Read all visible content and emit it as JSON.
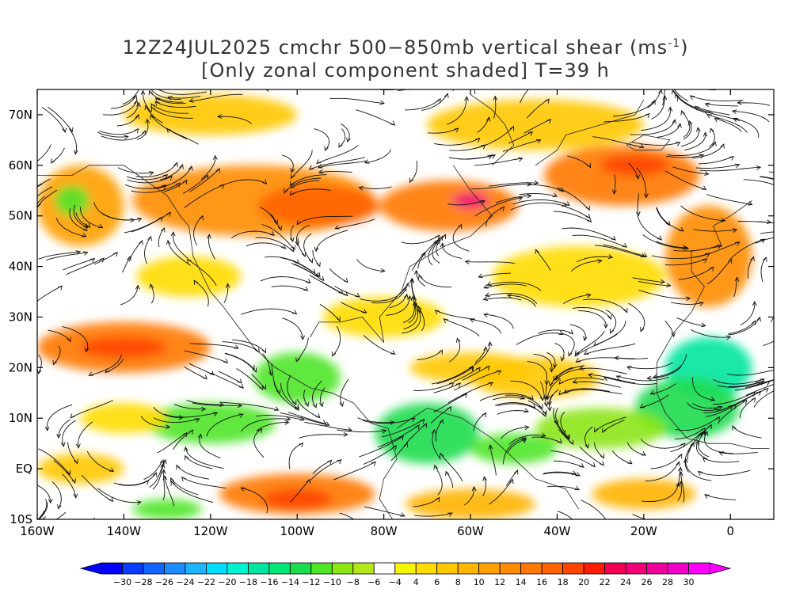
{
  "title": {
    "line1_prefix": "12Z24JUL2025 cmchr 500−850mb vertical shear (ms",
    "line1_sup": "-1",
    "line1_suffix": ")",
    "line2": "[Only zonal component shaded] T=39 h"
  },
  "latitude_labels": [
    "70N",
    "60N",
    "50N",
    "40N",
    "30N",
    "20N",
    "10N",
    "EQ",
    "10S"
  ],
  "latitude_values": [
    70,
    60,
    50,
    40,
    30,
    20,
    10,
    0,
    -10
  ],
  "longitude_labels": [
    "160W",
    "140W",
    "120W",
    "100W",
    "80W",
    "60W",
    "40W",
    "20W",
    "0"
  ],
  "longitude_values": [
    -160,
    -140,
    -120,
    -100,
    -80,
    -60,
    -40,
    -20,
    0
  ],
  "map_extent": {
    "lon_min": -160,
    "lon_max": 10,
    "lat_min": -10,
    "lat_max": 75
  },
  "colorbar": {
    "labels": [
      "−30",
      "−28",
      "−26",
      "−24",
      "−22",
      "−20",
      "−18",
      "−16",
      "−14",
      "−12",
      "−10",
      "−8",
      "−6",
      "−4",
      "4",
      "6",
      "8",
      "10",
      "12",
      "14",
      "16",
      "18",
      "20",
      "22",
      "24",
      "26",
      "28",
      "30"
    ],
    "colors": [
      "#0000ff",
      "#0a3cff",
      "#1464ff",
      "#1e8cff",
      "#1eb4ff",
      "#00dcff",
      "#00f0d2",
      "#00e6a0",
      "#00e678",
      "#1edc50",
      "#50e628",
      "#8ce614",
      "#b4e61e",
      "#ffffff",
      "#f5f500",
      "#ffdc00",
      "#ffc800",
      "#ffb400",
      "#ffa000",
      "#ff8c00",
      "#ff7800",
      "#ff6400",
      "#ff4600",
      "#ff1e00",
      "#f00050",
      "#f00078",
      "#f0009b",
      "#f000c8",
      "#ff00ff"
    ],
    "low_arrow_color": "#0000ff",
    "high_arrow_color": "#ff00ff"
  },
  "shading_regions": [
    {
      "lon": -150,
      "lat": 52,
      "rx": 10,
      "ry": 8,
      "color": "#ffa000"
    },
    {
      "lon": -152,
      "lat": 53,
      "rx": 4,
      "ry": 3,
      "color": "#50e628"
    },
    {
      "lon": -110,
      "lat": 53,
      "rx": 28,
      "ry": 7,
      "color": "#ff8c00"
    },
    {
      "lon": -95,
      "lat": 52,
      "rx": 14,
      "ry": 4,
      "color": "#ff6400"
    },
    {
      "lon": -65,
      "lat": 52,
      "rx": 16,
      "ry": 5,
      "color": "#ff7800"
    },
    {
      "lon": -60,
      "lat": 53,
      "rx": 4,
      "ry": 1.5,
      "color": "#f00078"
    },
    {
      "lon": -25,
      "lat": 58,
      "rx": 18,
      "ry": 6,
      "color": "#ff7800"
    },
    {
      "lon": -22,
      "lat": 60,
      "rx": 8,
      "ry": 2,
      "color": "#ff4600"
    },
    {
      "lon": -5,
      "lat": 42,
      "rx": 10,
      "ry": 10,
      "color": "#ff8c00"
    },
    {
      "lon": -140,
      "lat": 24,
      "rx": 20,
      "ry": 5,
      "color": "#ff7800"
    },
    {
      "lon": -140,
      "lat": 24,
      "rx": 10,
      "ry": 2,
      "color": "#ff4600"
    },
    {
      "lon": -100,
      "lat": -5,
      "rx": 18,
      "ry": 4,
      "color": "#ff7800"
    },
    {
      "lon": -100,
      "lat": -6,
      "rx": 8,
      "ry": 2,
      "color": "#ff4600"
    },
    {
      "lon": -120,
      "lat": 9,
      "rx": 15,
      "ry": 4,
      "color": "#50e628"
    },
    {
      "lon": -70,
      "lat": 7,
      "rx": 12,
      "ry": 6,
      "color": "#1edc50"
    },
    {
      "lon": -5,
      "lat": 20,
      "rx": 10,
      "ry": 6,
      "color": "#00e6a0"
    },
    {
      "lon": -10,
      "lat": 12,
      "rx": 12,
      "ry": 6,
      "color": "#1edc50"
    },
    {
      "lon": -30,
      "lat": 8,
      "rx": 15,
      "ry": 4,
      "color": "#8ce614"
    },
    {
      "lon": -45,
      "lat": 18,
      "rx": 15,
      "ry": 4,
      "color": "#ffc800"
    },
    {
      "lon": -80,
      "lat": 30,
      "rx": 14,
      "ry": 4,
      "color": "#ffdc00"
    },
    {
      "lon": -60,
      "lat": 20,
      "rx": 14,
      "ry": 3,
      "color": "#ffc800"
    },
    {
      "lon": -140,
      "lat": 10,
      "rx": 10,
      "ry": 3,
      "color": "#ffdc00"
    },
    {
      "lon": -150,
      "lat": 0,
      "rx": 10,
      "ry": 3,
      "color": "#ffc800"
    },
    {
      "lon": -60,
      "lat": -7,
      "rx": 15,
      "ry": 3,
      "color": "#ffb400"
    },
    {
      "lon": -20,
      "lat": -5,
      "rx": 12,
      "ry": 3,
      "color": "#ffb400"
    },
    {
      "lon": -125,
      "lat": 38,
      "rx": 12,
      "ry": 4,
      "color": "#ffdc00"
    },
    {
      "lon": -35,
      "lat": 38,
      "rx": 20,
      "ry": 6,
      "color": "#ffdc00"
    },
    {
      "lon": -45,
      "lat": 68,
      "rx": 25,
      "ry": 5,
      "color": "#ffc800"
    },
    {
      "lon": -120,
      "lat": 70,
      "rx": 20,
      "ry": 4,
      "color": "#ffc800"
    },
    {
      "lon": -100,
      "lat": 18,
      "rx": 10,
      "ry": 5,
      "color": "#50e628"
    },
    {
      "lon": -50,
      "lat": 4,
      "rx": 10,
      "ry": 3,
      "color": "#50e628"
    },
    {
      "lon": -130,
      "lat": -8,
      "rx": 8,
      "ry": 2,
      "color": "#50e628"
    }
  ]
}
